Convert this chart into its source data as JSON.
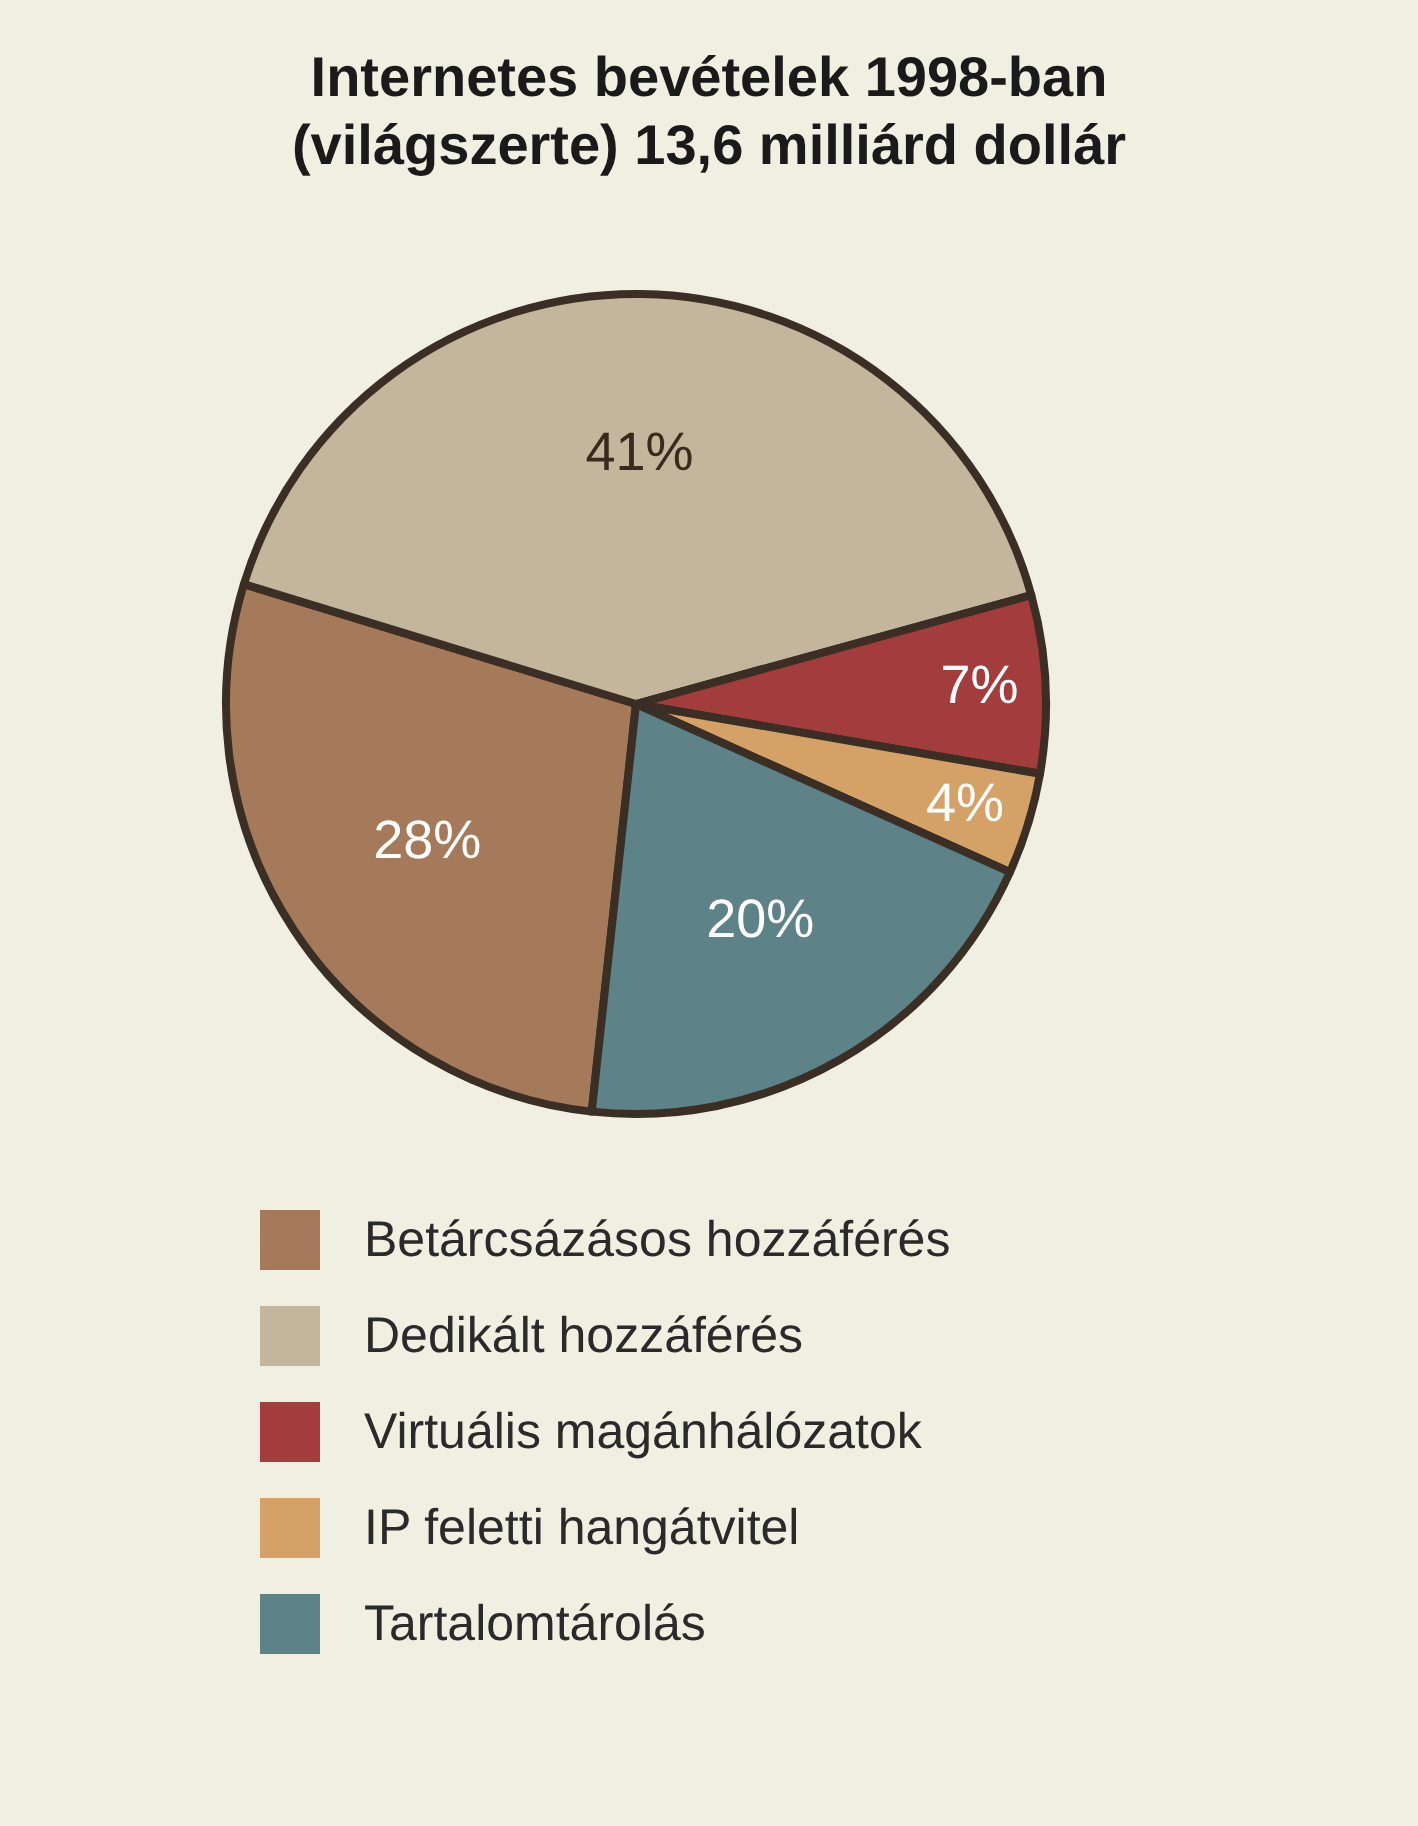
{
  "chart_data": {
    "type": "pie",
    "title": "Internetes bevételek 1998-ban\n(világszerte) 13,6 milliárd dollár",
    "categories": [
      "Betárcsázásos hozzáférés",
      "Dedikált hozzáférés",
      "Virtuális magánhálózatok",
      "IP feletti hangátvitel",
      "Tartalomtárolás"
    ],
    "values": [
      28,
      41,
      7,
      4,
      20
    ],
    "colors": [
      "#a57a5a",
      "#c4b69c",
      "#a33c3c",
      "#d4a266",
      "#5d8288"
    ],
    "value_labels": [
      "28%",
      "41%",
      "7%",
      "4%",
      "20%"
    ],
    "legend": "bottom"
  }
}
